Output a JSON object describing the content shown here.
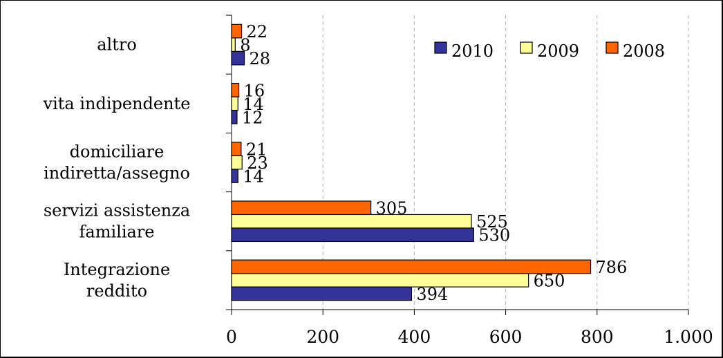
{
  "chart_data": {
    "type": "bar",
    "orientation": "horizontal",
    "categories": [
      [
        "altro"
      ],
      [
        "vita indipendente"
      ],
      [
        "domiciliare",
        "indiretta/assegno"
      ],
      [
        "servizi assistenza",
        "familiare"
      ],
      [
        "Integrazione",
        "reddito"
      ]
    ],
    "series": [
      {
        "name": "2010",
        "color": "#333399",
        "values": [
          28,
          12,
          14,
          530,
          394
        ]
      },
      {
        "name": "2009",
        "color": "#FFFF99",
        "values": [
          8,
          14,
          23,
          525,
          650
        ]
      },
      {
        "name": "2008",
        "color": "#FF6600",
        "values": [
          22,
          16,
          21,
          305,
          786
        ]
      }
    ],
    "x_ticks": [
      "0",
      "200",
      "400",
      "600",
      "800",
      "1.000"
    ],
    "xlim": [
      0,
      1000
    ],
    "grid": "vertical dashed",
    "legend": {
      "placement": "top-right"
    }
  }
}
